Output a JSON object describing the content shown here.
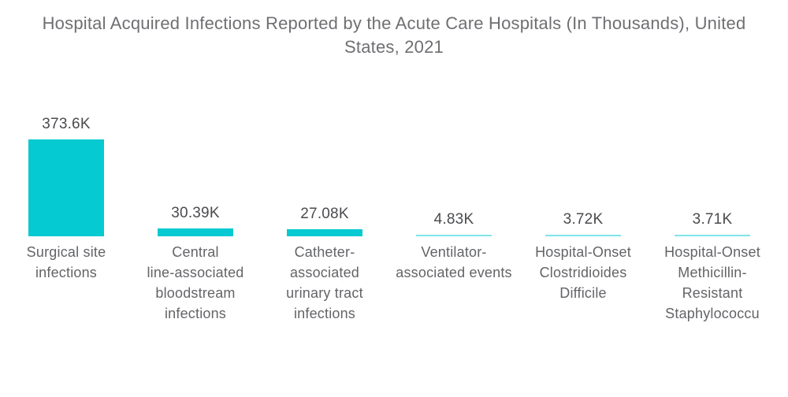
{
  "page": {
    "background_color": "#ffffff"
  },
  "title": {
    "text": "Hospital Acquired Infections Reported by the Acute Care Hospitals (In Thousands), United States, 2021"
  },
  "chart_data": {
    "type": "bar",
    "title": "Hospital Acquired Infections Reported by the Acute Care Hospitals (In Thousands), United States, 2021",
    "unit": "thousands",
    "orientation": "vertical",
    "axes_visible": false,
    "grid": false,
    "legend": false,
    "ylim": [
      0,
      374
    ],
    "categories": [
      "Surgical site infections",
      "Central line-associated bloodstream infections",
      "Catheter-associated urinary tract infections",
      "Ventilator-associated events",
      "Hospital-Onset Clostridioides Difficile",
      "Hospital-Onset Methicillin-Resistant Staphylococcu"
    ],
    "category_label_lines": [
      [
        "Surgical site",
        "infections"
      ],
      [
        "Central",
        "line-associated",
        "bloodstream",
        "infections"
      ],
      [
        "Catheter-",
        "associated",
        "urinary tract",
        "infections"
      ],
      [
        "Ventilator-",
        "associated events"
      ],
      [
        "Hospital-Onset",
        "Clostridioides",
        "Difficile"
      ],
      [
        "Hospital-Onset",
        "Methicillin-",
        "Resistant",
        "Staphylococcu"
      ]
    ],
    "values": [
      373.6,
      30.39,
      27.08,
      4.83,
      3.72,
      3.71
    ],
    "value_labels": [
      "373.6K",
      "30.39K",
      "27.08K",
      "4.83K",
      "3.72K",
      "3.71K"
    ],
    "colors": {
      "bar": "#05cad1",
      "bar_thin": "#7fe4ea",
      "title_text": "#6e6f72",
      "value_text": "#4a4b4e",
      "label_text": "#636467"
    }
  }
}
